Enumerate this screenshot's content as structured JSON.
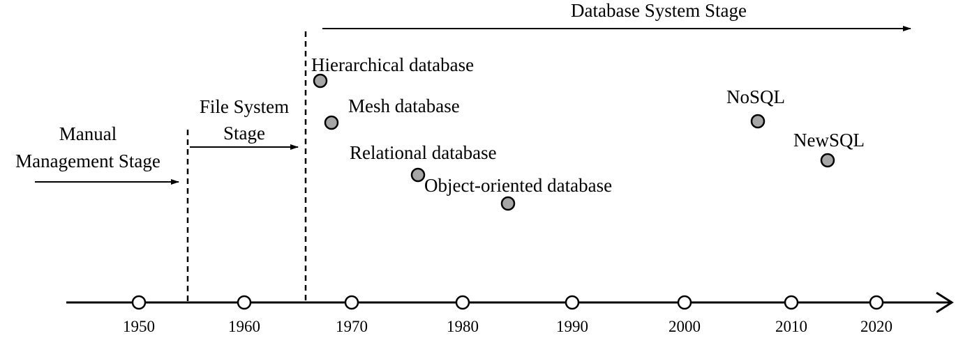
{
  "stages": {
    "manual": {
      "line1": "Manual",
      "line2": "Management Stage"
    },
    "file": {
      "line1": "File System",
      "line2": "Stage"
    },
    "database": {
      "label": "Database System Stage"
    }
  },
  "timeline": {
    "years": [
      "1950",
      "1960",
      "1970",
      "1980",
      "1990",
      "2000",
      "2010",
      "2020"
    ]
  },
  "events": [
    {
      "label": "Hierarchical database"
    },
    {
      "label": "Mesh database"
    },
    {
      "label": "Relational database"
    },
    {
      "label": "Object-oriented database"
    },
    {
      "label": "NoSQL"
    },
    {
      "label": "NewSQL"
    }
  ],
  "colors": {
    "line": "#000000",
    "event_marker_fill": "#a6a6a6",
    "year_marker_fill": "#ffffff"
  }
}
